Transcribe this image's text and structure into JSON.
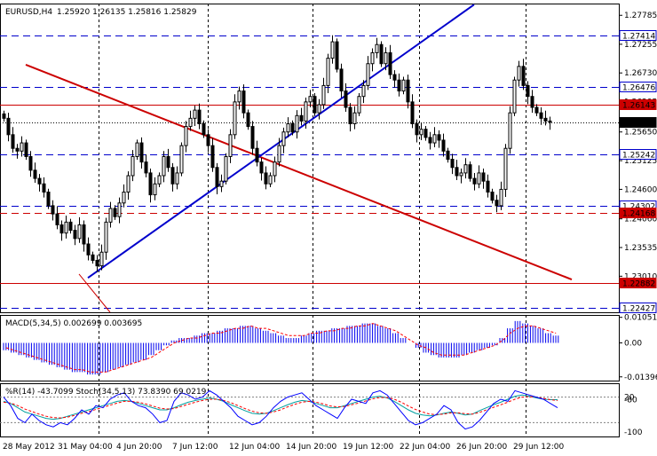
{
  "header": {
    "symbol": "EURUSD,H4",
    "ohlc": "1.25920 1.26135 1.25816 1.25829"
  },
  "colors": {
    "background": "#ffffff",
    "candle": "#000000",
    "blue_line": "#0000cc",
    "red_line": "#cc0000",
    "macd_hist": "#0000ee",
    "macd_signal": "#ff0000",
    "wpr": "#0000ff",
    "stoch_main": "#00a0a0",
    "stoch_signal": "#ff0000"
  },
  "chart_data": [
    {
      "type": "candlestick",
      "title": "EURUSD,H4",
      "ohlc_label": "1.25920 1.26135 1.25816 1.25829",
      "y_ticks": [
        "1.27785",
        "1.27255",
        "1.26730",
        "1.26205",
        "1.25650",
        "1.25125",
        "1.24600",
        "1.24060",
        "1.23535",
        "1.23010",
        "1.22475"
      ],
      "ylim": [
        1.2235,
        1.28
      ],
      "x_labels": [
        "28 May 2012",
        "31 May 04:00",
        "4 Jun 20:00",
        "7 Jun 12:00",
        "12 Jun 04:00",
        "14 Jun 20:00",
        "19 Jun 12:00",
        "22 Jun 04:00",
        "26 Jun 20:00",
        "29 Jun 12:00"
      ],
      "horizontal_levels": [
        {
          "value": 1.27414,
          "label": "1.27414",
          "color": "#0000cc",
          "style": "dashed"
        },
        {
          "value": 1.26476,
          "label": "1.26476",
          "color": "#0000cc",
          "style": "dashed"
        },
        {
          "value": 1.26143,
          "label": "1.26143",
          "color": "#cc0000",
          "style": "solid"
        },
        {
          "value": 1.25829,
          "label": "1.25829",
          "color": "#000000",
          "style": "dotted"
        },
        {
          "value": 1.25242,
          "label": "1.25242",
          "color": "#0000cc",
          "style": "dashed"
        },
        {
          "value": 1.24302,
          "label": "1.24302",
          "color": "#0000cc",
          "style": "dashed"
        },
        {
          "value": 1.24168,
          "label": "1.24168",
          "color": "#cc0000",
          "style": "dashed"
        },
        {
          "value": 1.22882,
          "label": "1.22882",
          "color": "#cc0000",
          "style": "solid"
        },
        {
          "value": 1.22427,
          "label": "1.22427",
          "color": "#0000cc",
          "style": "dashed"
        }
      ],
      "closes": [
        1.259,
        1.256,
        1.2535,
        1.253,
        1.2545,
        1.252,
        1.2495,
        1.248,
        1.247,
        1.2455,
        1.243,
        1.2415,
        1.2395,
        1.238,
        1.24,
        1.2385,
        1.237,
        1.2395,
        1.236,
        1.234,
        1.233,
        1.232,
        1.2345,
        1.24,
        1.2425,
        1.241,
        1.2435,
        1.2455,
        1.2485,
        1.252,
        1.2545,
        1.251,
        1.249,
        1.245,
        1.247,
        1.2485,
        1.252,
        1.25,
        1.247,
        1.249,
        1.254,
        1.2575,
        1.259,
        1.2605,
        1.258,
        1.256,
        1.254,
        1.25,
        1.2465,
        1.2475,
        1.252,
        1.256,
        1.262,
        1.264,
        1.26,
        1.2575,
        1.2535,
        1.251,
        1.249,
        1.247,
        1.2485,
        1.251,
        1.254,
        1.2565,
        1.258,
        1.2565,
        1.2595,
        1.2585,
        1.262,
        1.263,
        1.26,
        1.2615,
        1.265,
        1.27,
        1.273,
        1.268,
        1.264,
        1.261,
        1.258,
        1.26,
        1.263,
        1.265,
        1.269,
        1.271,
        1.2725,
        1.269,
        1.271,
        1.267,
        1.266,
        1.264,
        1.266,
        1.262,
        1.258,
        1.256,
        1.257,
        1.2555,
        1.2545,
        1.256,
        1.255,
        1.253,
        1.2515,
        1.25,
        1.2485,
        1.249,
        1.2505,
        1.248,
        1.247,
        1.249,
        1.2475,
        1.2455,
        1.244,
        1.243,
        1.246,
        1.2535,
        1.26,
        1.266,
        1.2685,
        1.265,
        1.263,
        1.261,
        1.26,
        1.259,
        1.2585,
        1.2583
      ],
      "trendlines": [
        {
          "from": [
            5,
            1.2688
          ],
          "to": [
            128,
            1.2295
          ],
          "color": "#cc0000"
        },
        {
          "from": [
            17,
            1.2305
          ],
          "to": [
            24,
            1.2235
          ],
          "color": "#cc0000"
        },
        {
          "from": [
            19,
            1.2298
          ],
          "to": [
            106,
            1.2798
          ],
          "color": "#0000cc"
        }
      ]
    },
    {
      "type": "bar",
      "title": "MACD(5,34,5) 0.002699 0.003695",
      "y_ticks": [
        "0.010515",
        "0.00",
        "-0.01396"
      ],
      "ylim": [
        -0.0155,
        0.0115
      ],
      "series": [
        {
          "name": "MACD",
          "values": [
            -0.003,
            -0.004,
            -0.005,
            -0.006,
            -0.007,
            -0.008,
            -0.009,
            -0.01,
            -0.011,
            -0.012,
            -0.012,
            -0.013,
            -0.013,
            -0.012,
            -0.011,
            -0.01,
            -0.009,
            -0.008,
            -0.007,
            -0.005,
            -0.003,
            -0.001,
            0.001,
            0.002,
            0.002,
            0.003,
            0.004,
            0.004,
            0.005,
            0.006,
            0.006,
            0.007,
            0.007,
            0.006,
            0.005,
            0.004,
            0.003,
            0.002,
            0.002,
            0.003,
            0.004,
            0.005,
            0.005,
            0.006,
            0.006,
            0.007,
            0.007,
            0.008,
            0.008,
            0.007,
            0.006,
            0.004,
            0.002,
            0.0,
            -0.002,
            -0.004,
            -0.005,
            -0.006,
            -0.006,
            -0.006,
            -0.005,
            -0.004,
            -0.003,
            -0.002,
            -0.001,
            0.002,
            0.006,
            0.009,
            0.008,
            0.007,
            0.006,
            0.004,
            0.003
          ]
        },
        {
          "name": "Signal",
          "values": [
            -0.002,
            -0.003,
            -0.004,
            -0.005,
            -0.006,
            -0.007,
            -0.008,
            -0.009,
            -0.01,
            -0.011,
            -0.011,
            -0.012,
            -0.012,
            -0.012,
            -0.011,
            -0.01,
            -0.009,
            -0.008,
            -0.007,
            -0.006,
            -0.004,
            -0.002,
            0.0,
            0.001,
            0.002,
            0.002,
            0.003,
            0.004,
            0.004,
            0.005,
            0.006,
            0.006,
            0.007,
            0.006,
            0.006,
            0.005,
            0.004,
            0.003,
            0.003,
            0.003,
            0.004,
            0.004,
            0.005,
            0.005,
            0.006,
            0.006,
            0.007,
            0.007,
            0.008,
            0.007,
            0.006,
            0.005,
            0.003,
            0.001,
            -0.001,
            -0.002,
            -0.004,
            -0.005,
            -0.005,
            -0.005,
            -0.005,
            -0.004,
            -0.003,
            -0.002,
            -0.001,
            0.001,
            0.004,
            0.006,
            0.007,
            0.007,
            0.006,
            0.005,
            0.004
          ]
        }
      ]
    },
    {
      "type": "line",
      "title": "%R(14) -43.7099  Stoch(34,5,13) 73.8390 69.0219",
      "y_ticks": [
        "20",
        "-80",
        "-100"
      ],
      "ylim": [
        0,
        100
      ],
      "series": [
        {
          "name": "%R(14)",
          "values": [
            80,
            60,
            30,
            20,
            40,
            25,
            15,
            10,
            20,
            15,
            30,
            50,
            40,
            60,
            55,
            75,
            85,
            90,
            70,
            60,
            55,
            40,
            20,
            25,
            70,
            90,
            85,
            75,
            80,
            95,
            85,
            70,
            55,
            35,
            25,
            15,
            20,
            35,
            55,
            70,
            80,
            85,
            90,
            75,
            60,
            50,
            40,
            30,
            55,
            75,
            70,
            65,
            90,
            95,
            85,
            65,
            45,
            25,
            15,
            20,
            30,
            40,
            60,
            50,
            20,
            5,
            10,
            25,
            45,
            65,
            75,
            70,
            95,
            90,
            85,
            80,
            75,
            65,
            55
          ]
        },
        {
          "name": "Stoch main",
          "values": [
            70,
            65,
            55,
            45,
            40,
            35,
            30,
            28,
            30,
            35,
            40,
            45,
            50,
            55,
            60,
            65,
            70,
            72,
            70,
            65,
            60,
            55,
            50,
            50,
            55,
            62,
            68,
            72,
            75,
            78,
            75,
            70,
            62,
            55,
            48,
            42,
            40,
            42,
            48,
            55,
            62,
            68,
            72,
            70,
            65,
            60,
            55,
            55,
            60,
            65,
            70,
            75,
            80,
            82,
            78,
            70,
            60,
            50,
            42,
            38,
            36,
            38,
            42,
            45,
            42,
            38,
            40,
            48,
            55,
            62,
            68,
            75,
            82,
            85,
            82,
            78,
            75,
            74,
            74
          ]
        },
        {
          "name": "Stoch signal",
          "values": [
            68,
            66,
            60,
            52,
            46,
            40,
            35,
            32,
            31,
            33,
            37,
            42,
            46,
            51,
            56,
            61,
            66,
            70,
            70,
            68,
            64,
            59,
            54,
            52,
            53,
            58,
            63,
            68,
            72,
            75,
            75,
            72,
            67,
            60,
            53,
            47,
            43,
            42,
            45,
            50,
            57,
            63,
            68,
            70,
            68,
            64,
            59,
            57,
            58,
            62,
            66,
            71,
            76,
            79,
            79,
            75,
            68,
            59,
            51,
            45,
            40,
            39,
            40,
            43,
            43,
            41,
            40,
            44,
            50,
            56,
            62,
            68,
            75,
            80,
            81,
            80,
            77,
            74,
            72
          ]
        }
      ]
    }
  ]
}
